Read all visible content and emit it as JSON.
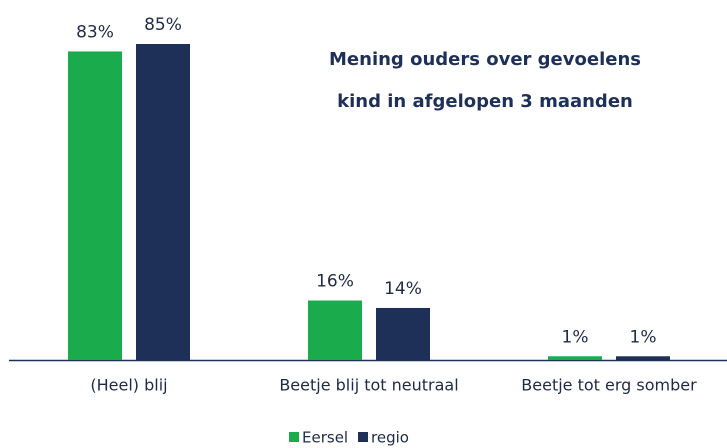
{
  "chart_data": {
    "type": "bar",
    "title": [
      "Mening ouders over gevoelens",
      "kind in afgelopen 3 maanden"
    ],
    "categories": [
      "(Heel) blij",
      "Beetje blij tot neutraal",
      "Beetje tot erg somber"
    ],
    "series": [
      {
        "name": "Eersel",
        "color": "#1aab4c",
        "values": [
          83,
          16,
          1
        ],
        "value_labels": [
          "83%",
          "16%",
          "1%"
        ]
      },
      {
        "name": "regio",
        "color": "#1f3058",
        "values": [
          85,
          14,
          1
        ],
        "value_labels": [
          "85%",
          "14%",
          "1%"
        ]
      }
    ],
    "legend": "bottom"
  }
}
